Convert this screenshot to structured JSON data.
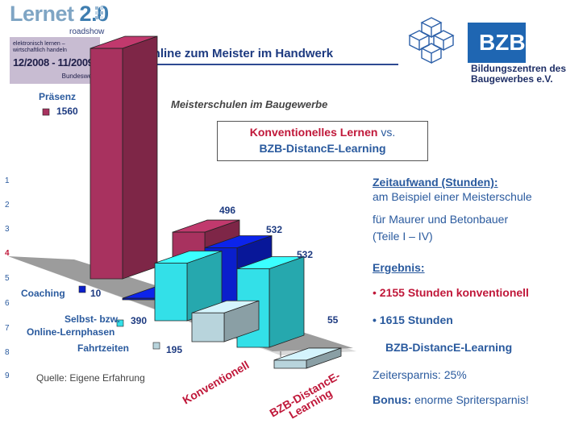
{
  "branding": {
    "lernet_text": "Lernet",
    "lernet_version": "2.0",
    "roadshow": "roadshow",
    "banner_line1": "elektronisch lernen –",
    "banner_line2": "wirtschaftlich handeln",
    "period": "12/2008 - 11/2009",
    "region": "Bundesweit",
    "bzb_label": "BZB",
    "bzb_subline1": "Bildungszentren des",
    "bzb_subline2": "Baugewerbes e.V."
  },
  "slide": {
    "title": "Online zum Meister im Handwerk",
    "subtitle": "Meisterschulen im Baugewerbe",
    "compare_red": "Konventionelles Lernen",
    "compare_vs": " vs.",
    "compare_blue": "BZB-DistancE-Learning",
    "source": "Quelle: Eigene Erfahrung"
  },
  "indicators": [
    "1",
    "2",
    "3",
    "4",
    "5",
    "6",
    "7",
    "8",
    "9"
  ],
  "active_indicator": "4",
  "right_panel": {
    "zeitaufwand_heading": "Zeitaufwand (Stunden):",
    "zeitaufwand_line1": "am Beispiel einer Meisterschule",
    "zeitaufwand_line2": "für Maurer und Betonbauer",
    "zeitaufwand_line3": "(Teile I – IV)",
    "ergebnis_heading": "Ergebnis:",
    "bullet1": "2155 Stunden konventionell",
    "bullet2": "1615 Stunden",
    "bullet2_cont": "BZB-DistancE-Learning",
    "zeitersparnis": "Zeitersparnis: 25%",
    "bonus_label": "Bonus:",
    "bonus_text": " enorme Spritersparnis!"
  },
  "chart_data": {
    "type": "bar",
    "subtype": "3d-stacked",
    "categories": [
      "Konventionell",
      "BZB-DistancE-Learning"
    ],
    "series": [
      {
        "name": "Präsenz",
        "color": "#a8325f",
        "values": [
          1560,
          496
        ]
      },
      {
        "name": "Coaching",
        "color": "#0a1fcc",
        "values": [
          10,
          532
        ]
      },
      {
        "name": "Selbst- bzw. Online-Lernphasen",
        "color": "#33e0e8",
        "values": [
          390,
          532
        ]
      },
      {
        "name": "Fahrtzeiten",
        "color": "#b8d4dc",
        "values": [
          195,
          55
        ]
      }
    ],
    "series_label_lines": [
      [
        "Präsenz"
      ],
      [
        "Coaching"
      ],
      [
        "Selbst- bzw.",
        "Online-Lernphasen"
      ],
      [
        "Fahrtzeiten"
      ]
    ],
    "value_labels": [
      "1560",
      "496",
      "10",
      "532",
      "390",
      "532",
      "195",
      "55"
    ],
    "category_label_lines": [
      [
        "Konventionell"
      ],
      [
        "BZB-DistancE-",
        "Learning"
      ]
    ]
  }
}
